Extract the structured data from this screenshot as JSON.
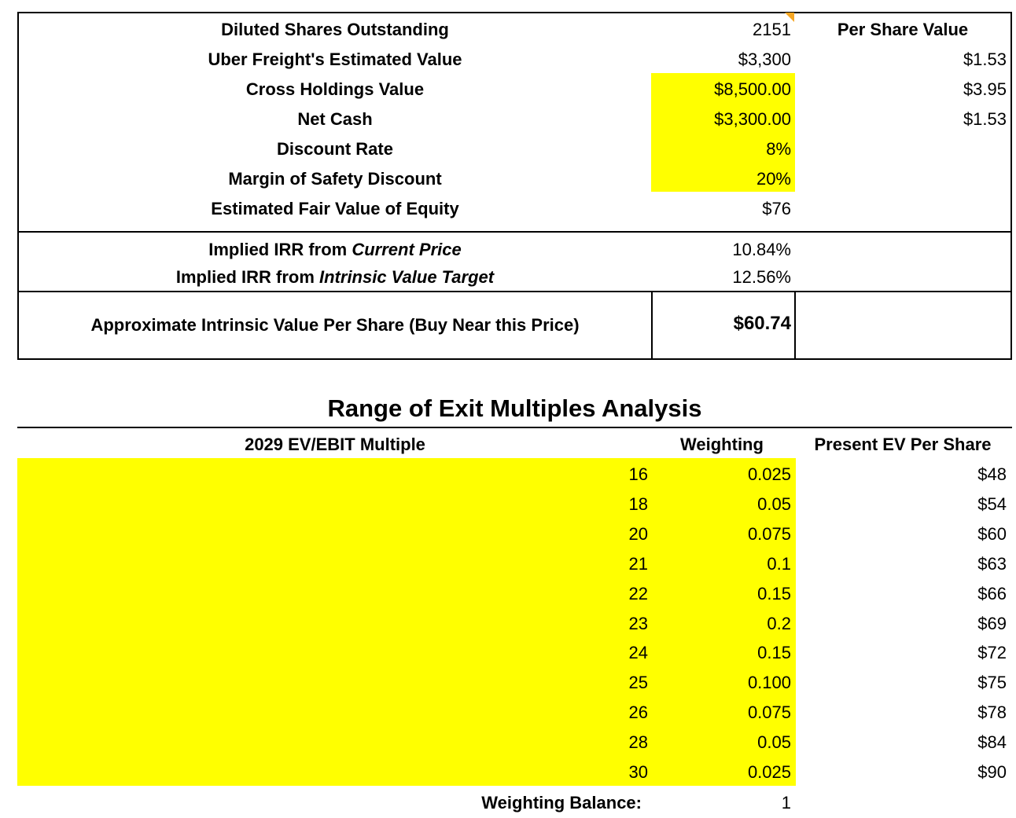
{
  "valuation": {
    "rows": [
      {
        "label": "Diluted Shares Outstanding",
        "value": "2151",
        "per_share": ""
      },
      {
        "label": "Uber Freight's Estimated Value",
        "value": "$3,300",
        "per_share": "$1.53"
      },
      {
        "label": "Cross Holdings Value",
        "value": "$8,500.00",
        "per_share": "$3.95"
      },
      {
        "label": "Net Cash",
        "value": "$3,300.00",
        "per_share": "$1.53"
      },
      {
        "label": "Discount Rate",
        "value": "8%",
        "per_share": ""
      },
      {
        "label": "Margin of Safety Discount",
        "value": "20%",
        "per_share": ""
      },
      {
        "label": "Estimated Fair Value of Equity",
        "value": "$76",
        "per_share": ""
      }
    ],
    "per_share_header": "Per Share Value",
    "irr": {
      "current_prefix": "Implied IRR from ",
      "current_italic": "Current Price",
      "current_value": "10.84%",
      "target_prefix": "Implied IRR from ",
      "target_italic": "Intrinsic Value Target",
      "target_value": "12.56%"
    },
    "intrinsic": {
      "label": "Approximate Intrinsic Value Per Share (Buy Near this Price)",
      "value": "$60.74"
    }
  },
  "exit_analysis": {
    "title": "Range of Exit Multiples Analysis",
    "headers": {
      "multiple": "2029 EV/EBIT Multiple",
      "weighting": "Weighting",
      "present_ev": "Present EV Per Share"
    },
    "rows": [
      {
        "multiple": "16",
        "weighting": "0.025",
        "ev": "$48"
      },
      {
        "multiple": "18",
        "weighting": "0.05",
        "ev": "$54"
      },
      {
        "multiple": "20",
        "weighting": "0.075",
        "ev": "$60"
      },
      {
        "multiple": "21",
        "weighting": "0.1",
        "ev": "$63"
      },
      {
        "multiple": "22",
        "weighting": "0.15",
        "ev": "$66"
      },
      {
        "multiple": "23",
        "weighting": "0.2",
        "ev": "$69"
      },
      {
        "multiple": "24",
        "weighting": "0.15",
        "ev": "$72"
      },
      {
        "multiple": "25",
        "weighting": "0.100",
        "ev": "$75"
      },
      {
        "multiple": "26",
        "weighting": "0.075",
        "ev": "$78"
      },
      {
        "multiple": "28",
        "weighting": "0.05",
        "ev": "$84"
      },
      {
        "multiple": "30",
        "weighting": "0.025",
        "ev": "$90"
      }
    ],
    "balance": {
      "label": "Weighting Balance:",
      "value": "1"
    }
  },
  "colors": {
    "highlight": "#ffff00",
    "comment_marker": "#f5a623"
  }
}
